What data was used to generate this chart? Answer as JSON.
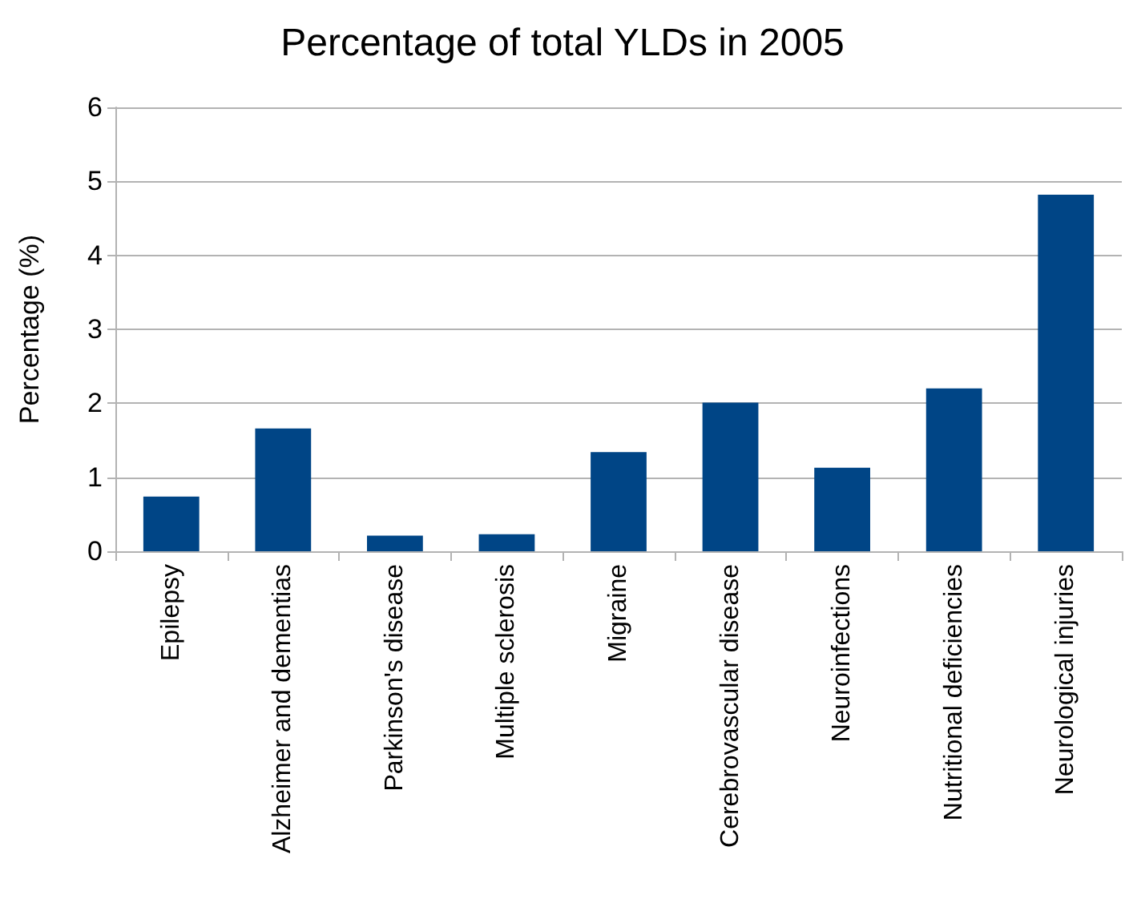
{
  "chart_data": {
    "type": "bar",
    "title": "Percentage of total YLDs in 2005",
    "ylabel": "Percentage (%)",
    "categories": [
      "Epilepsy",
      "Alzheimer and dementias",
      "Parkinson's disease",
      "Multiple sclerosis",
      "Migraine",
      "Cerebrovascular disease",
      "Neuroinfections",
      "Nutritional deficiencies",
      "Neurological injuries"
    ],
    "values": [
      0.74,
      1.66,
      0.21,
      0.23,
      1.34,
      2.01,
      1.13,
      2.2,
      4.82
    ],
    "color": "#004586",
    "ylim": [
      0,
      6
    ],
    "yticks": [
      0,
      1,
      2,
      3,
      4,
      5,
      6
    ],
    "grid": "y"
  }
}
